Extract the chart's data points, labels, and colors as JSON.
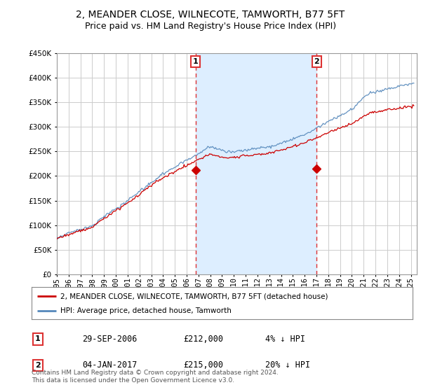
{
  "title": "2, MEANDER CLOSE, WILNECOTE, TAMWORTH, B77 5FT",
  "subtitle": "Price paid vs. HM Land Registry's House Price Index (HPI)",
  "ylim": [
    0,
    450000
  ],
  "yticks": [
    0,
    50000,
    100000,
    150000,
    200000,
    250000,
    300000,
    350000,
    400000,
    450000
  ],
  "xlim_start": 1995.0,
  "xlim_end": 2025.5,
  "sale1_x": 2006.747,
  "sale1_y": 212000,
  "sale1_label": "1",
  "sale2_x": 2017.01,
  "sale2_y": 215000,
  "sale2_label": "2",
  "line_color_property": "#cc0000",
  "line_color_hpi": "#5588bb",
  "vline_color": "#dd3333",
  "background_color": "#ffffff",
  "plot_bg": "#ffffff",
  "grid_color": "#cccccc",
  "shade_color": "#ddeeff",
  "legend_label_property": "2, MEANDER CLOSE, WILNECOTE, TAMWORTH, B77 5FT (detached house)",
  "legend_label_hpi": "HPI: Average price, detached house, Tamworth",
  "annotation1_date": "29-SEP-2006",
  "annotation1_price": "£212,000",
  "annotation1_hpi": "4% ↓ HPI",
  "annotation2_date": "04-JAN-2017",
  "annotation2_price": "£215,000",
  "annotation2_hpi": "20% ↓ HPI",
  "footer": "Contains HM Land Registry data © Crown copyright and database right 2024.\nThis data is licensed under the Open Government Licence v3.0.",
  "title_fontsize": 10,
  "subtitle_fontsize": 9,
  "tick_fontsize": 7.5
}
